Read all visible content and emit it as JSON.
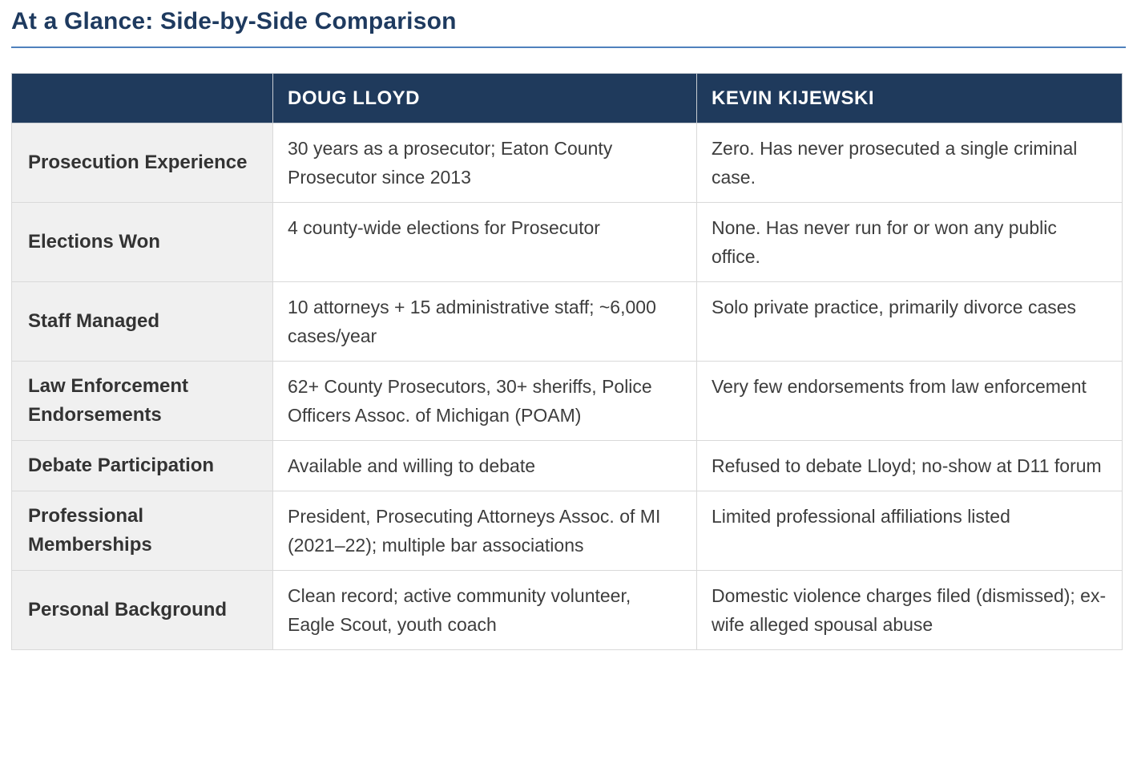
{
  "page": {
    "title": "At a Glance: Side-by-Side Comparison"
  },
  "colors": {
    "title_text": "#1e3a5f",
    "title_rule": "#4f81bd",
    "header_background": "#1f3a5c",
    "header_text": "#ffffff",
    "label_column_background": "#f0f0f0",
    "body_text": "#3d3d3d",
    "cell_border": "#d9d9d9"
  },
  "table": {
    "columns": [
      "",
      "DOUG LLOYD",
      "KEVIN KIJEWSKI"
    ],
    "rows": [
      {
        "label": "Prosecution Experience",
        "lloyd": "30 years as a prosecutor; Eaton County Prosecutor since 2013",
        "kijewski": "Zero. Has never prosecuted a single criminal case."
      },
      {
        "label": "Elections Won",
        "lloyd": "4 county-wide elections for Prosecutor",
        "kijewski": "None. Has never run for or won any public office."
      },
      {
        "label": "Staff Managed",
        "lloyd": "10 attorneys + 15 administrative staff; ~6,000 cases/year",
        "kijewski": "Solo private practice, primarily divorce cases"
      },
      {
        "label": "Law Enforcement Endorsements",
        "lloyd": "62+ County Prosecutors, 30+ sheriffs, Police Officers Assoc. of Michigan (POAM)",
        "kijewski": "Very few endorsements from law enforcement"
      },
      {
        "label": "Debate Participation",
        "lloyd": "Available and willing to debate",
        "kijewski": "Refused to debate Lloyd; no-show at D11 forum"
      },
      {
        "label": "Professional Memberships",
        "lloyd": "President, Prosecuting Attorneys Assoc. of MI (2021–22); multiple bar associations",
        "kijewski": "Limited professional affiliations listed"
      },
      {
        "label": "Personal Background",
        "lloyd": "Clean record; active community volunteer, Eagle Scout, youth coach",
        "kijewski": "Domestic violence charges filed (dismissed); ex-wife alleged spousal abuse"
      }
    ]
  }
}
